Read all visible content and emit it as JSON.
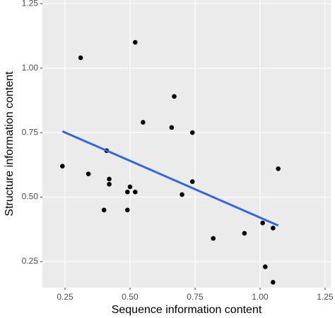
{
  "chart_data": {
    "type": "scatter",
    "x_label": "Sequence information content",
    "y_label": "Structure information content",
    "x": [
      0.24,
      0.31,
      0.34,
      0.41,
      0.42,
      0.42,
      0.4,
      0.49,
      0.5,
      0.52,
      0.49,
      0.52,
      0.55,
      0.67,
      0.66,
      0.74,
      0.74,
      0.7,
      0.82,
      0.94,
      1.01,
      1.05,
      1.02,
      1.05,
      1.07
    ],
    "y": [
      0.62,
      1.04,
      0.59,
      0.68,
      0.57,
      0.55,
      0.45,
      0.52,
      0.54,
      0.52,
      0.45,
      1.1,
      0.79,
      0.89,
      0.77,
      0.75,
      0.56,
      0.51,
      0.34,
      0.36,
      0.4,
      0.38,
      0.23,
      0.17,
      0.61
    ],
    "color": "#000000",
    "fit": {
      "x": [
        0.24,
        1.07
      ],
      "y": [
        0.755,
        0.39
      ],
      "color": "#3366e0"
    },
    "xlim": [
      0.163,
      1.272
    ],
    "ylim": [
      0.149,
      1.264
    ],
    "xticks": [
      0.25,
      {
        "value": 0.5,
        "label": "0.50"
      },
      0.75,
      {
        "value": 1,
        "label": "1.00"
      },
      1.25
    ],
    "yticks": [
      0.25,
      {
        "value": 0.5,
        "label": "0.50"
      },
      0.75,
      {
        "value": 1,
        "label": "1.00"
      },
      1.25
    ],
    "grid": true
  }
}
